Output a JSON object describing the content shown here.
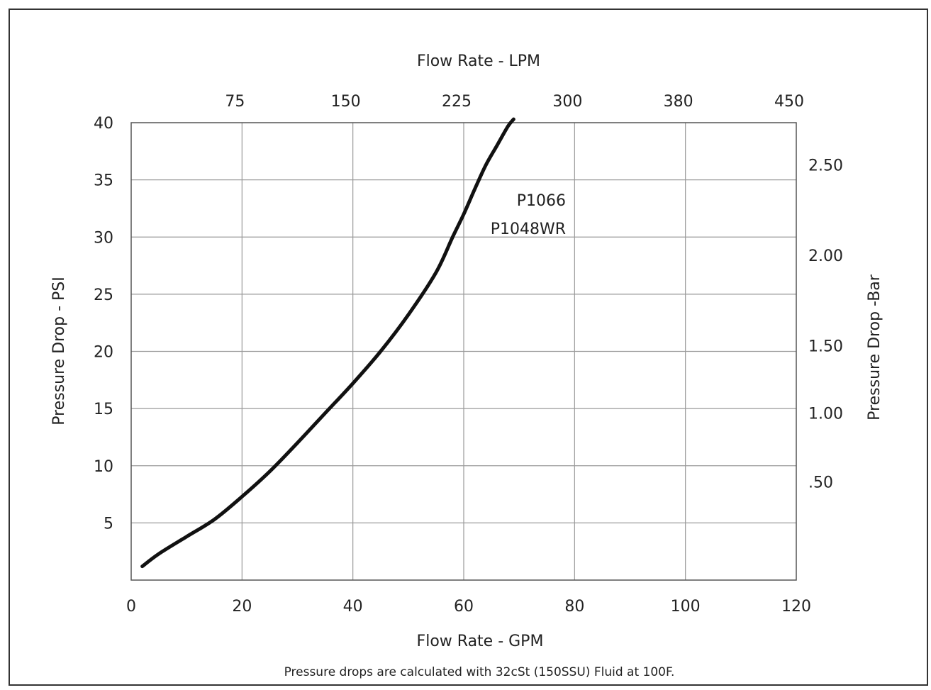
{
  "chart_data": {
    "type": "line",
    "title": "",
    "xlabel": "Flow Rate - GPM",
    "x2label": "Flow Rate - LPM",
    "ylabel": "Pressure Drop - PSI",
    "y2label": "Pressure Drop -Bar",
    "footnote": "Pressure drops are calculated with 32cSt (150SSU) Fluid at 100F.",
    "xlim": [
      0,
      120
    ],
    "ylim": [
      0,
      40
    ],
    "grid": true,
    "x_ticks": [
      "0",
      "20",
      "40",
      "60",
      "80",
      "100",
      "120"
    ],
    "x_tick_values": [
      0,
      20,
      40,
      60,
      80,
      100,
      120
    ],
    "x2_ticks": [
      "75",
      "150",
      "225",
      "300",
      "380",
      "450"
    ],
    "x2_tick_gpm": [
      20,
      40,
      60,
      80,
      100,
      120
    ],
    "y_ticks": [
      "5",
      "10",
      "15",
      "20",
      "25",
      "30",
      "35",
      "40"
    ],
    "y_tick_values": [
      5,
      10,
      15,
      20,
      25,
      30,
      35,
      40
    ],
    "y2_ticks": [
      ".50",
      "1.00",
      "1.50",
      "2.00",
      "2.50"
    ],
    "y2_tick_psi": [
      8.6,
      14.6,
      20.5,
      28.4,
      36.3
    ],
    "series": [
      {
        "name": "",
        "labels": [
          "P1066",
          "P1048WR"
        ],
        "x": [
          2,
          5,
          10,
          15,
          20,
          25,
          30,
          35,
          40,
          45,
          50,
          55,
          58,
          60,
          62,
          64,
          66,
          68,
          69
        ],
        "y": [
          1.2,
          2.3,
          3.8,
          5.3,
          7.3,
          9.5,
          12.0,
          14.6,
          17.2,
          20.0,
          23.2,
          26.9,
          30.0,
          32.0,
          34.2,
          36.3,
          38.0,
          39.7,
          40.3
        ]
      }
    ]
  }
}
